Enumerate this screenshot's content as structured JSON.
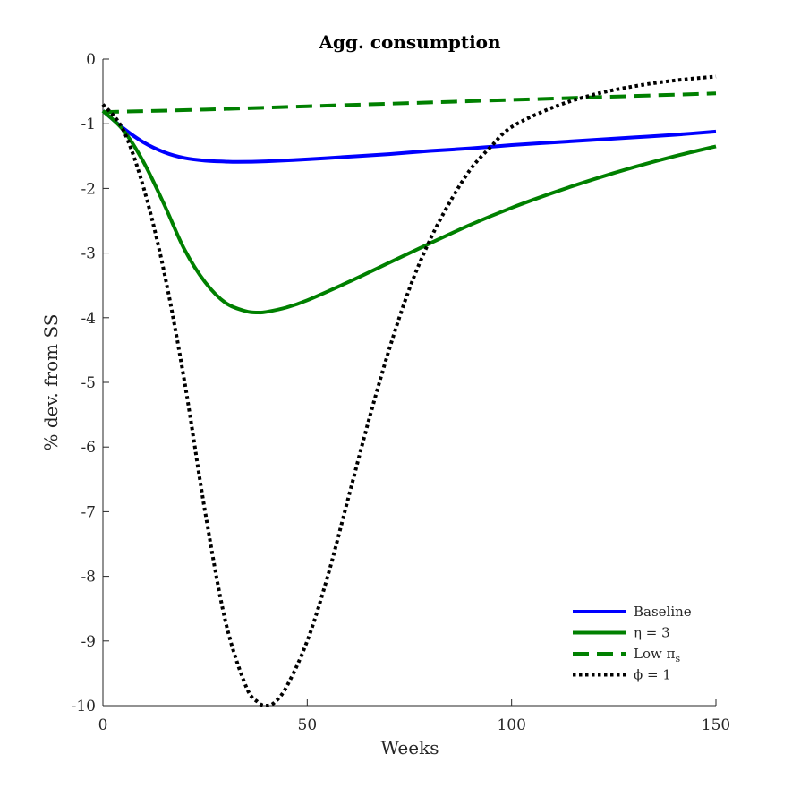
{
  "chart_data": {
    "type": "line",
    "title": "Agg.  consumption",
    "xlabel": "Weeks",
    "ylabel": "% dev. from SS",
    "xlim": [
      0,
      150
    ],
    "ylim": [
      -10,
      0
    ],
    "x_ticks": [
      0,
      50,
      100,
      150
    ],
    "y_ticks": [
      0,
      -1,
      -2,
      -3,
      -4,
      -5,
      -6,
      -7,
      -8,
      -9,
      -10
    ],
    "x_tick_labels": [
      "0",
      "50",
      "100",
      "150"
    ],
    "y_tick_labels": [
      "0",
      "-1",
      "-2",
      "-3",
      "-4",
      "-5",
      "-6",
      "-7",
      "-8",
      "-9",
      "-10"
    ],
    "grid": false,
    "legend_position": "bottom-right",
    "series": [
      {
        "name": "Baseline",
        "color": "#0000ff",
        "dash": "solid",
        "x": [
          0,
          5,
          10,
          15,
          20,
          25,
          30,
          33,
          40,
          50,
          60,
          70,
          80,
          90,
          100,
          110,
          120,
          130,
          140,
          150
        ],
        "y": [
          -0.8,
          -1.07,
          -1.29,
          -1.44,
          -1.53,
          -1.57,
          -1.585,
          -1.59,
          -1.58,
          -1.55,
          -1.51,
          -1.47,
          -1.42,
          -1.38,
          -1.33,
          -1.29,
          -1.25,
          -1.21,
          -1.17,
          -1.12
        ]
      },
      {
        "name": "η = 3",
        "color": "#008000",
        "dash": "solid",
        "x": [
          0,
          5,
          10,
          15,
          20,
          25,
          30,
          35,
          38,
          40,
          45,
          50,
          60,
          70,
          80,
          90,
          100,
          110,
          120,
          130,
          140,
          150
        ],
        "y": [
          -0.8,
          -1.1,
          -1.6,
          -2.25,
          -2.95,
          -3.45,
          -3.77,
          -3.9,
          -3.92,
          -3.91,
          -3.84,
          -3.73,
          -3.45,
          -3.15,
          -2.85,
          -2.56,
          -2.3,
          -2.07,
          -1.86,
          -1.67,
          -1.5,
          -1.35
        ]
      },
      {
        "name": "Low π_s",
        "color": "#008000",
        "dash": "dashed",
        "x": [
          0,
          25,
          50,
          75,
          100,
          125,
          150
        ],
        "y": [
          -0.82,
          -0.78,
          -0.73,
          -0.68,
          -0.63,
          -0.58,
          -0.53
        ]
      },
      {
        "name": "ϕ = 1",
        "color": "#000000",
        "dash": "dotted",
        "x": [
          0,
          5,
          10,
          15,
          20,
          25,
          30,
          35,
          38,
          40,
          42,
          45,
          50,
          55,
          60,
          65,
          70,
          75,
          80,
          85,
          90,
          95,
          100,
          110,
          120,
          130,
          140,
          150
        ],
        "y": [
          -0.7,
          -1.1,
          -2.0,
          -3.3,
          -5.0,
          -7.0,
          -8.7,
          -9.7,
          -9.95,
          -10.0,
          -9.95,
          -9.7,
          -9.0,
          -8.0,
          -6.8,
          -5.6,
          -4.5,
          -3.55,
          -2.8,
          -2.2,
          -1.7,
          -1.35,
          -1.05,
          -0.75,
          -0.55,
          -0.42,
          -0.33,
          -0.27
        ]
      }
    ]
  },
  "legend": {
    "items": [
      {
        "label": "Baseline"
      },
      {
        "label": "η = 3"
      },
      {
        "label": "Low π",
        "sub": "s"
      },
      {
        "label": "ϕ = 1"
      }
    ]
  }
}
